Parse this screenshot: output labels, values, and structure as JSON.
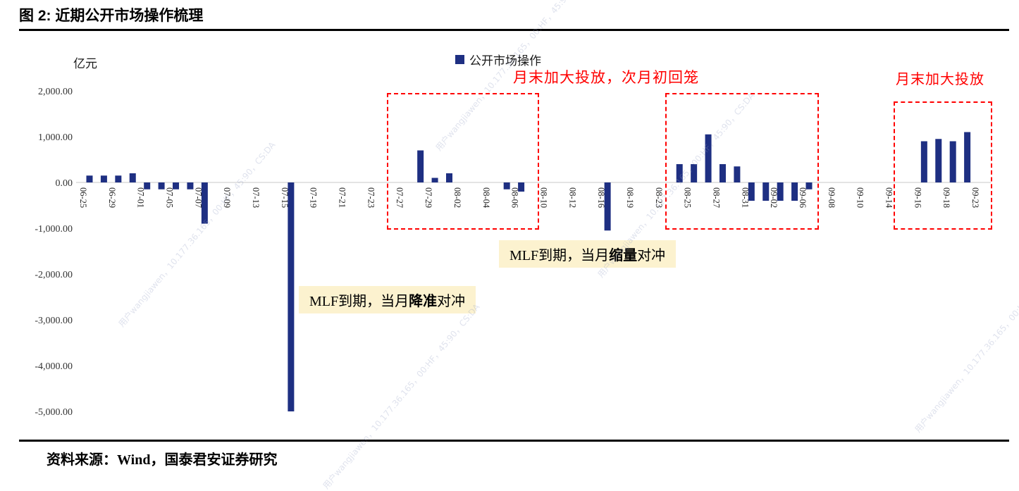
{
  "title": "图 2:  近期公开市场操作梳理",
  "unit_label": "亿元",
  "legend": {
    "label": "公开市场操作",
    "color": "#1e2f82"
  },
  "annotations": {
    "red_1": "月末加大投放，次月初回笼",
    "red_2": "月末加大投放",
    "note_1": {
      "prefix": "MLF到期，当月",
      "bold": "缩量",
      "suffix": "对冲"
    },
    "note_2": {
      "prefix": "MLF到期，当月",
      "bold": "降准",
      "suffix": "对冲"
    }
  },
  "watermark": {
    "text": "用户wangjiawen，10.177.36.165，00:HF，45:90，CS:DA"
  },
  "footer": {
    "source": "资料来源：Wind，国泰君安证券研究"
  },
  "chart_data": {
    "type": "bar",
    "title": "近期公开市场操作梳理",
    "xlabel": "",
    "ylabel": "亿元",
    "ylim": [
      -5000,
      2000
    ],
    "grid": false,
    "legend_position": "top",
    "legend_entries": [
      "公开市场操作"
    ],
    "bar_color": "#1e2f82",
    "y_ticks": [
      {
        "v": 2000,
        "label": "2,000.00"
      },
      {
        "v": 1000,
        "label": "1,000.00"
      },
      {
        "v": 0,
        "label": "0.00"
      },
      {
        "v": -1000,
        "label": "-1,000.00"
      },
      {
        "v": -2000,
        "label": "-2,000.00"
      },
      {
        "v": -3000,
        "label": "-3,000.00"
      },
      {
        "v": -4000,
        "label": "-4,000.00"
      },
      {
        "v": -5000,
        "label": "-5,000.00"
      }
    ],
    "categories": [
      "06-25",
      "",
      "06-29",
      "",
      "07-01",
      "",
      "07-05",
      "",
      "07-07",
      "",
      "07-09",
      "",
      "07-13",
      "",
      "07-15",
      "",
      "07-19",
      "",
      "07-21",
      "",
      "07-23",
      "",
      "07-27",
      "",
      "07-29",
      "",
      "08-02",
      "",
      "08-04",
      "",
      "08-06",
      "",
      "08-10",
      "",
      "08-12",
      "",
      "08-16",
      "",
      "08-19",
      "",
      "08-23",
      "",
      "08-25",
      "",
      "08-27",
      "",
      "08-31",
      "",
      "09-02",
      "",
      "09-06",
      "",
      "09-08",
      "",
      "09-10",
      "",
      "09-14",
      "",
      "09-16",
      "",
      "09-18",
      "",
      "09-23"
    ],
    "values": [
      150,
      150,
      150,
      200,
      -150,
      -150,
      -150,
      -150,
      -900,
      0,
      0,
      0,
      0,
      0,
      -5000,
      0,
      0,
      0,
      0,
      0,
      0,
      0,
      0,
      700,
      100,
      200,
      0,
      0,
      0,
      -150,
      -200,
      0,
      0,
      0,
      0,
      0,
      -1050,
      0,
      0,
      0,
      0,
      400,
      400,
      1050,
      400,
      350,
      -400,
      -400,
      -400,
      -400,
      -150,
      0,
      0,
      0,
      0,
      0,
      0,
      0,
      900,
      950,
      900,
      1100,
      0
    ]
  }
}
